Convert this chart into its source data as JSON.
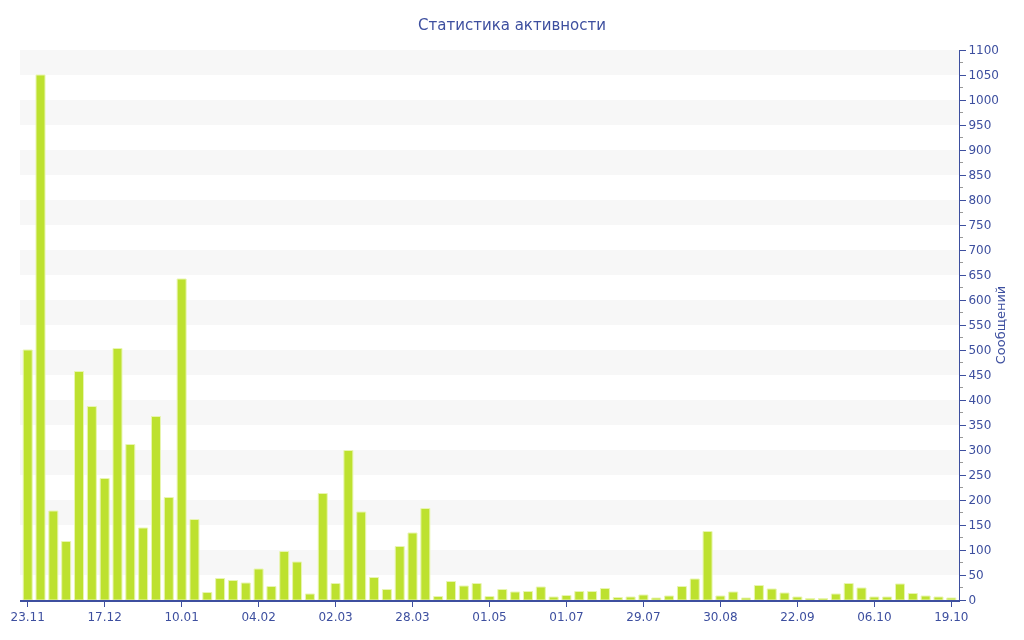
{
  "chart_data": {
    "type": "bar",
    "title": "Статистика активности",
    "ylabel": "Сообщений",
    "categories": [
      "23.11",
      null,
      null,
      null,
      null,
      null,
      "17.12",
      null,
      null,
      null,
      null,
      null,
      "10.01",
      null,
      null,
      null,
      null,
      null,
      "04.02",
      null,
      null,
      null,
      null,
      null,
      "02.03",
      null,
      null,
      null,
      null,
      null,
      "28.03",
      null,
      null,
      null,
      null,
      null,
      "01.05",
      null,
      null,
      null,
      null,
      null,
      "01.07",
      null,
      null,
      null,
      null,
      null,
      "29.07",
      null,
      null,
      null,
      null,
      null,
      "30.08",
      null,
      null,
      null,
      null,
      null,
      "22.09",
      null,
      null,
      null,
      null,
      null,
      "06.10",
      null,
      null,
      null,
      null,
      null,
      "19.10"
    ],
    "values": [
      500,
      1050,
      178,
      117,
      457,
      387,
      243,
      503,
      311,
      144,
      367,
      205,
      642,
      161,
      15,
      43,
      39,
      34,
      62,
      27,
      97,
      76,
      12,
      213,
      33,
      299,
      176,
      45,
      21,
      107,
      134,
      183,
      7,
      37,
      28,
      33,
      7,
      21,
      16,
      17,
      26,
      6,
      9,
      17,
      17,
      23,
      5,
      6,
      10,
      4,
      8,
      27,
      42,
      137,
      8,
      16,
      4,
      29,
      22,
      14,
      6,
      3,
      3,
      12,
      33,
      24,
      6,
      6,
      32,
      13,
      8,
      6,
      4
    ],
    "color": "#bde12f",
    "ylim": [
      0,
      1100
    ],
    "yticks": [
      0,
      50,
      100,
      150,
      200,
      250,
      300,
      350,
      400,
      450,
      500,
      550,
      600,
      650,
      700,
      750,
      800,
      850,
      900,
      950,
      1000,
      1050,
      1100
    ],
    "grid": false
  }
}
